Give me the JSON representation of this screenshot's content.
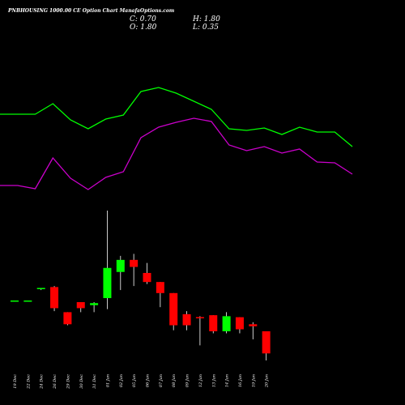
{
  "header": {
    "title": "PNBHOUSING 1000.00 CE Option Chart ManafaOptions.com",
    "close_label": "C:",
    "close_value": "0.70",
    "open_label": "O:",
    "open_value": "1.80",
    "high_label": "H:",
    "high_value": "1.80",
    "low_label": "L:",
    "low_value": "0.35"
  },
  "colors": {
    "background": "#000000",
    "bullish": "#00ff00",
    "bearish": "#ff0000",
    "line_green": "#00ff00",
    "line_magenta": "#cc00cc",
    "wick": "#ffffff",
    "text": "#ffffff"
  },
  "chart_data": {
    "type": "candlestick",
    "categories": [
      "19 Dec",
      "22 Dec",
      "24 Dec",
      "26 Dec",
      "29 Dec",
      "30 Dec",
      "31 Dec",
      "01 Jan",
      "02 Jan",
      "05 Jan",
      "06 Jan",
      "07 Jan",
      "08 Jan",
      "09 Jan",
      "12 Jan",
      "13 Jan",
      "14 Jan",
      "16 Jan",
      "19 Jan",
      "20 Jan"
    ],
    "candles": [
      {
        "o": 4.5,
        "h": 4.5,
        "l": 4.5,
        "c": 4.5
      },
      {
        "o": 4.5,
        "h": 4.5,
        "l": 4.5,
        "c": 4.5
      },
      {
        "o": 5.1,
        "h": 5.15,
        "l": 5.05,
        "c": 5.15
      },
      {
        "o": 5.2,
        "h": 5.25,
        "l": 4.0,
        "c": 4.15
      },
      {
        "o": 3.95,
        "h": 3.95,
        "l": 3.3,
        "c": 3.35
      },
      {
        "o": 4.45,
        "h": 4.45,
        "l": 3.95,
        "c": 4.15
      },
      {
        "o": 4.3,
        "h": 4.45,
        "l": 3.95,
        "c": 4.4
      },
      {
        "o": 4.65,
        "h": 9.0,
        "l": 4.1,
        "c": 6.15
      },
      {
        "o": 5.95,
        "h": 6.75,
        "l": 5.05,
        "c": 6.55
      },
      {
        "o": 6.55,
        "h": 6.85,
        "l": 5.25,
        "c": 6.2
      },
      {
        "o": 5.9,
        "h": 6.4,
        "l": 5.35,
        "c": 5.45
      },
      {
        "o": 5.45,
        "h": 5.45,
        "l": 4.2,
        "c": 4.9
      },
      {
        "o": 4.9,
        "h": 4.9,
        "l": 3.05,
        "c": 3.3
      },
      {
        "o": 3.85,
        "h": 4.0,
        "l": 3.05,
        "c": 3.3
      },
      {
        "o": 3.7,
        "h": 3.75,
        "l": 2.3,
        "c": 3.65
      },
      {
        "o": 3.8,
        "h": 3.8,
        "l": 2.9,
        "c": 3.0
      },
      {
        "o": 3.0,
        "h": 3.95,
        "l": 2.9,
        "c": 3.75
      },
      {
        "o": 3.7,
        "h": 3.7,
        "l": 2.9,
        "c": 3.1
      },
      {
        "o": 3.35,
        "h": 3.45,
        "l": 2.6,
        "c": 3.25
      },
      {
        "o": 3.0,
        "h": 3.0,
        "l": 1.55,
        "c": 1.9
      }
    ],
    "ylim": [
      0,
      14
    ]
  }
}
